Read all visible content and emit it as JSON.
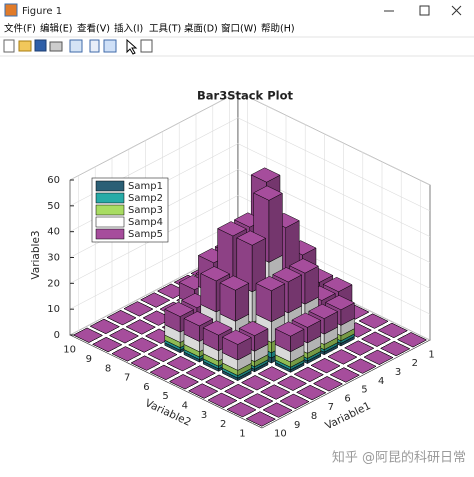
{
  "window": {
    "title": "Figure 1",
    "menu": [
      "文件(F)",
      "编辑(E)",
      "查看(V)",
      "插入(I)",
      "工具(T)",
      "桌面(D)",
      "窗口(W)",
      "帮助(H)"
    ]
  },
  "chart_data": {
    "type": "bar3",
    "title": "Bar3Stack Plot",
    "xlabel": "Variable1",
    "ylabel": "Variable2",
    "zlabel": "Variable3",
    "x": [
      1,
      2,
      3,
      4,
      5,
      6,
      7,
      8,
      9,
      10
    ],
    "y": [
      1,
      2,
      3,
      4,
      5,
      6,
      7,
      8,
      9,
      10
    ],
    "xlim": [
      0.5,
      10.5
    ],
    "ylim": [
      0.5,
      10.5
    ],
    "zlim": [
      0,
      60
    ],
    "xticks": [
      1,
      2,
      3,
      4,
      5,
      6,
      7,
      8,
      9,
      10
    ],
    "yticks": [
      1,
      2,
      3,
      4,
      5,
      6,
      7,
      8,
      9,
      10
    ],
    "zticks": [
      0,
      10,
      20,
      30,
      40,
      50,
      60
    ],
    "grid": true,
    "legend": "northwest",
    "series": [
      {
        "name": "Samp1",
        "color": "#2b5f75",
        "values": [
          [
            0,
            0,
            0,
            0,
            0,
            0,
            0,
            0,
            0,
            0
          ],
          [
            0,
            0,
            0,
            0,
            0,
            0,
            0,
            0,
            0,
            0
          ],
          [
            0,
            0,
            1,
            1,
            1,
            1,
            0,
            0,
            0,
            0
          ],
          [
            0,
            1,
            1,
            2,
            2,
            2,
            1,
            1,
            0,
            0
          ],
          [
            0,
            1,
            2,
            3,
            4,
            3,
            2,
            1,
            0,
            0
          ],
          [
            0,
            1,
            2,
            4,
            3,
            3,
            2,
            1,
            0,
            0
          ],
          [
            0,
            0,
            1,
            2,
            2,
            2,
            1,
            1,
            0,
            0
          ],
          [
            0,
            0,
            1,
            1,
            1,
            1,
            0,
            0,
            0,
            0
          ],
          [
            0,
            0,
            0,
            0,
            0,
            0,
            0,
            0,
            0,
            0
          ],
          [
            0,
            0,
            0,
            0,
            0,
            0,
            0,
            0,
            0,
            0
          ]
        ]
      },
      {
        "name": "Samp2",
        "color": "#27aba7",
        "values": [
          [
            0,
            0,
            0,
            0,
            0,
            0,
            0,
            0,
            0,
            0
          ],
          [
            0,
            0,
            0,
            0,
            0,
            0,
            0,
            0,
            0,
            0
          ],
          [
            0,
            0,
            1,
            1,
            1,
            1,
            0,
            0,
            0,
            0
          ],
          [
            0,
            1,
            1,
            2,
            2,
            2,
            1,
            1,
            0,
            0
          ],
          [
            0,
            1,
            2,
            3,
            4,
            3,
            2,
            1,
            0,
            0
          ],
          [
            0,
            1,
            2,
            4,
            3,
            3,
            2,
            1,
            0,
            0
          ],
          [
            0,
            0,
            1,
            2,
            2,
            2,
            1,
            1,
            0,
            0
          ],
          [
            0,
            0,
            1,
            1,
            1,
            1,
            0,
            0,
            0,
            0
          ],
          [
            0,
            0,
            0,
            0,
            0,
            0,
            0,
            0,
            0,
            0
          ],
          [
            0,
            0,
            0,
            0,
            0,
            0,
            0,
            0,
            0,
            0
          ]
        ]
      },
      {
        "name": "Samp3",
        "color": "#a8dc62",
        "values": [
          [
            0,
            0,
            0,
            0,
            0,
            0,
            0,
            0,
            0,
            0
          ],
          [
            0,
            0,
            0,
            0,
            0,
            0,
            0,
            0,
            0,
            0
          ],
          [
            0,
            0,
            2,
            2,
            2,
            2,
            0,
            0,
            0,
            0
          ],
          [
            0,
            2,
            2,
            4,
            4,
            4,
            2,
            2,
            0,
            0
          ],
          [
            0,
            2,
            4,
            6,
            8,
            6,
            4,
            2,
            0,
            0
          ],
          [
            0,
            2,
            4,
            8,
            6,
            6,
            4,
            2,
            0,
            0
          ],
          [
            0,
            0,
            2,
            4,
            4,
            4,
            2,
            2,
            0,
            0
          ],
          [
            0,
            0,
            2,
            2,
            2,
            2,
            0,
            0,
            0,
            0
          ],
          [
            0,
            0,
            0,
            0,
            0,
            0,
            0,
            0,
            0,
            0
          ],
          [
            0,
            0,
            0,
            0,
            0,
            0,
            0,
            0,
            0,
            0
          ]
        ]
      },
      {
        "name": "Samp4",
        "color": "#ffffff",
        "values": [
          [
            0,
            0,
            0,
            0,
            0,
            0,
            0,
            0,
            0,
            0
          ],
          [
            0,
            0,
            0,
            0,
            0,
            0,
            0,
            0,
            0,
            0
          ],
          [
            0,
            0,
            4,
            4,
            4,
            4,
            0,
            0,
            0,
            0
          ],
          [
            0,
            4,
            4,
            8,
            8,
            8,
            4,
            4,
            0,
            0
          ],
          [
            0,
            4,
            8,
            12,
            16,
            12,
            8,
            4,
            0,
            0
          ],
          [
            0,
            4,
            8,
            16,
            12,
            12,
            8,
            4,
            0,
            0
          ],
          [
            0,
            0,
            4,
            8,
            8,
            8,
            4,
            4,
            0,
            0
          ],
          [
            0,
            0,
            4,
            4,
            4,
            4,
            0,
            0,
            0,
            0
          ],
          [
            0,
            0,
            0,
            0,
            0,
            0,
            0,
            0,
            0,
            0
          ],
          [
            0,
            0,
            0,
            0,
            0,
            0,
            0,
            0,
            0,
            0
          ]
        ]
      },
      {
        "name": "Samp5",
        "color": "#a64d9c",
        "values": [
          [
            0,
            0,
            0,
            0,
            0,
            0,
            0,
            0,
            0,
            0
          ],
          [
            0,
            0,
            0,
            0,
            0,
            0,
            0,
            0,
            0,
            0
          ],
          [
            0,
            0,
            6,
            6,
            6,
            6,
            0,
            0,
            0,
            0
          ],
          [
            0,
            6,
            6,
            12,
            12,
            12,
            6,
            6,
            0,
            0
          ],
          [
            0,
            6,
            12,
            18,
            24,
            18,
            12,
            6,
            0,
            0
          ],
          [
            0,
            6,
            12,
            24,
            18,
            18,
            12,
            6,
            0,
            0
          ],
          [
            0,
            0,
            6,
            12,
            12,
            12,
            6,
            6,
            0,
            0
          ],
          [
            0,
            0,
            6,
            6,
            6,
            6,
            0,
            0,
            0,
            0
          ],
          [
            0,
            0,
            0,
            0,
            0,
            0,
            0,
            0,
            0,
            0
          ],
          [
            0,
            0,
            0,
            0,
            0,
            0,
            0,
            0,
            0,
            0
          ]
        ]
      }
    ]
  },
  "watermark": "知乎 @阿昆的科研日常"
}
